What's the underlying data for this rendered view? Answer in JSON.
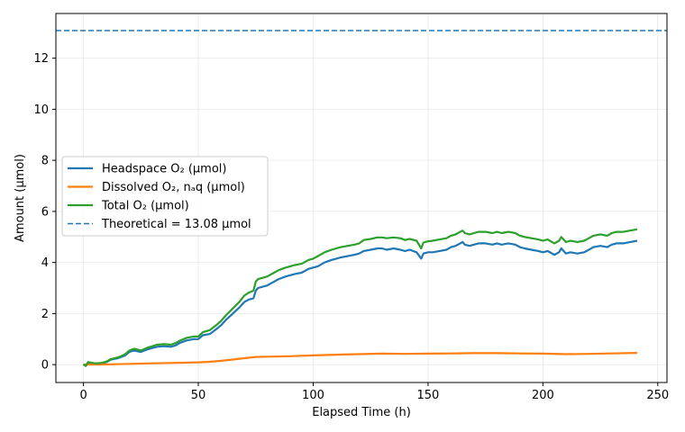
{
  "chart_data": {
    "type": "line",
    "title": "",
    "xlabel": "Elapsed Time (h)",
    "ylabel": "Amount (μmol)",
    "xlim": [
      -12,
      254
    ],
    "ylim": [
      -0.7,
      13.75
    ],
    "xticks": [
      0,
      50,
      100,
      150,
      200,
      250
    ],
    "yticks": [
      0,
      2,
      4,
      6,
      8,
      10,
      12
    ],
    "grid": true,
    "legend_position": "center-left",
    "series": [
      {
        "name": "Headspace O₂ (μmol)",
        "color": "#1f77b4",
        "style": "solid",
        "x": [
          0,
          1,
          2,
          5,
          8,
          10,
          12,
          15,
          18,
          20,
          22,
          25,
          28,
          30,
          32,
          35,
          38,
          40,
          42,
          45,
          48,
          50,
          52,
          55,
          58,
          60,
          62,
          65,
          68,
          70,
          72,
          74,
          75,
          76,
          78,
          80,
          82,
          85,
          88,
          90,
          92,
          95,
          98,
          100,
          102,
          105,
          108,
          110,
          112,
          115,
          118,
          120,
          122,
          125,
          128,
          130,
          132,
          135,
          138,
          140,
          142,
          145,
          147,
          148,
          150,
          152,
          155,
          158,
          160,
          162,
          165,
          166,
          168,
          170,
          172,
          175,
          178,
          180,
          182,
          185,
          188,
          190,
          192,
          195,
          198,
          200,
          202,
          205,
          207,
          208,
          210,
          212,
          215,
          218,
          220,
          222,
          225,
          228,
          230,
          232,
          235,
          238,
          241
        ],
        "values": [
          0.0,
          -0.05,
          0.05,
          0.02,
          0.05,
          0.1,
          0.2,
          0.25,
          0.35,
          0.5,
          0.55,
          0.5,
          0.6,
          0.65,
          0.7,
          0.72,
          0.7,
          0.75,
          0.85,
          0.95,
          1.0,
          1.0,
          1.15,
          1.2,
          1.4,
          1.55,
          1.75,
          2.0,
          2.25,
          2.45,
          2.55,
          2.6,
          2.9,
          3.0,
          3.05,
          3.1,
          3.2,
          3.35,
          3.45,
          3.5,
          3.55,
          3.6,
          3.75,
          3.8,
          3.85,
          4.0,
          4.1,
          4.15,
          4.2,
          4.25,
          4.3,
          4.35,
          4.45,
          4.5,
          4.55,
          4.55,
          4.5,
          4.55,
          4.5,
          4.45,
          4.5,
          4.4,
          4.15,
          4.35,
          4.4,
          4.4,
          4.45,
          4.5,
          4.6,
          4.65,
          4.8,
          4.7,
          4.65,
          4.7,
          4.75,
          4.75,
          4.7,
          4.75,
          4.7,
          4.75,
          4.7,
          4.6,
          4.55,
          4.5,
          4.45,
          4.4,
          4.45,
          4.3,
          4.4,
          4.55,
          4.35,
          4.4,
          4.35,
          4.4,
          4.5,
          4.6,
          4.65,
          4.6,
          4.7,
          4.75,
          4.75,
          4.8,
          4.85
        ]
      },
      {
        "name": "Dissolved O₂, nₐq (μmol)",
        "color": "#ff7f0e",
        "style": "solid",
        "x": [
          0,
          10,
          20,
          30,
          40,
          50,
          55,
          60,
          65,
          70,
          75,
          80,
          90,
          100,
          110,
          120,
          130,
          140,
          150,
          160,
          170,
          180,
          190,
          200,
          210,
          220,
          230,
          241
        ],
        "values": [
          0.0,
          0.01,
          0.03,
          0.05,
          0.07,
          0.09,
          0.11,
          0.15,
          0.2,
          0.25,
          0.3,
          0.31,
          0.33,
          0.36,
          0.39,
          0.41,
          0.43,
          0.42,
          0.43,
          0.44,
          0.45,
          0.45,
          0.44,
          0.43,
          0.41,
          0.42,
          0.44,
          0.46
        ]
      },
      {
        "name": "Total O₂ (μmol)",
        "color": "#2ca02c",
        "style": "solid",
        "x": [
          0,
          1,
          2,
          5,
          8,
          10,
          12,
          15,
          18,
          20,
          22,
          25,
          28,
          30,
          32,
          35,
          38,
          40,
          42,
          45,
          48,
          50,
          52,
          55,
          58,
          60,
          62,
          65,
          68,
          70,
          72,
          74,
          75,
          76,
          78,
          80,
          82,
          85,
          88,
          90,
          92,
          95,
          98,
          100,
          102,
          105,
          108,
          110,
          112,
          115,
          118,
          120,
          122,
          125,
          128,
          130,
          132,
          135,
          138,
          140,
          142,
          145,
          147,
          148,
          150,
          152,
          155,
          158,
          160,
          162,
          165,
          166,
          168,
          170,
          172,
          175,
          178,
          180,
          182,
          185,
          188,
          190,
          192,
          195,
          198,
          200,
          202,
          205,
          207,
          208,
          210,
          212,
          215,
          218,
          220,
          222,
          225,
          228,
          230,
          232,
          235,
          238,
          241
        ],
        "values": [
          0.02,
          -0.05,
          0.1,
          0.05,
          0.07,
          0.12,
          0.22,
          0.28,
          0.4,
          0.55,
          0.62,
          0.55,
          0.67,
          0.72,
          0.78,
          0.8,
          0.78,
          0.84,
          0.94,
          1.05,
          1.1,
          1.1,
          1.27,
          1.35,
          1.56,
          1.72,
          1.93,
          2.2,
          2.47,
          2.7,
          2.82,
          2.9,
          3.25,
          3.35,
          3.4,
          3.45,
          3.55,
          3.7,
          3.8,
          3.85,
          3.9,
          3.95,
          4.1,
          4.15,
          4.25,
          4.4,
          4.5,
          4.55,
          4.6,
          4.65,
          4.7,
          4.75,
          4.88,
          4.92,
          4.98,
          4.98,
          4.95,
          4.98,
          4.95,
          4.88,
          4.92,
          4.85,
          4.55,
          4.78,
          4.83,
          4.85,
          4.9,
          4.95,
          5.05,
          5.1,
          5.25,
          5.15,
          5.1,
          5.15,
          5.2,
          5.2,
          5.15,
          5.2,
          5.15,
          5.2,
          5.15,
          5.05,
          5.0,
          4.95,
          4.9,
          4.85,
          4.9,
          4.75,
          4.85,
          5.0,
          4.8,
          4.85,
          4.8,
          4.85,
          4.95,
          5.05,
          5.1,
          5.05,
          5.15,
          5.2,
          5.2,
          5.25,
          5.3
        ]
      },
      {
        "name": "Theoretical = 13.08 μmol",
        "color": "#1f77b4",
        "style": "dashed",
        "hline": 13.08
      }
    ]
  }
}
